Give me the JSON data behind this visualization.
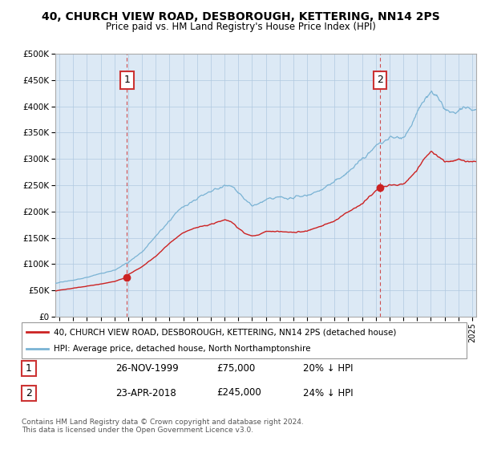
{
  "title": "40, CHURCH VIEW ROAD, DESBOROUGH, KETTERING, NN14 2PS",
  "subtitle": "Price paid vs. HM Land Registry's House Price Index (HPI)",
  "ylim": [
    0,
    500000
  ],
  "yticks": [
    0,
    50000,
    100000,
    150000,
    200000,
    250000,
    300000,
    350000,
    400000,
    450000,
    500000
  ],
  "ytick_labels": [
    "£0",
    "£50K",
    "£100K",
    "£150K",
    "£200K",
    "£250K",
    "£300K",
    "£350K",
    "£400K",
    "£450K",
    "£500K"
  ],
  "hpi_color": "#7ab3d4",
  "price_color": "#cc2222",
  "vline_color": "#cc3333",
  "sale1_x": 1999.9,
  "sale1_y": 75000,
  "sale2_x": 2018.3,
  "sale2_y": 245000,
  "legend_entries": [
    "40, CHURCH VIEW ROAD, DESBOROUGH, KETTERING, NN14 2PS (detached house)",
    "HPI: Average price, detached house, North Northamptonshire"
  ],
  "table_rows": [
    [
      "1",
      "26-NOV-1999",
      "£75,000",
      "20% ↓ HPI"
    ],
    [
      "2",
      "23-APR-2018",
      "£245,000",
      "24% ↓ HPI"
    ]
  ],
  "footnote": "Contains HM Land Registry data © Crown copyright and database right 2024.\nThis data is licensed under the Open Government Licence v3.0.",
  "plot_bg_color": "#dce9f5",
  "grid_color": "#b0c8e0",
  "xlim_start": 1994.7,
  "xlim_end": 2025.3,
  "hpi_breakpoints": [
    1994.5,
    1995,
    1996,
    1997,
    1998,
    1999,
    2000,
    2001,
    2002,
    2003,
    2004,
    2005,
    2006,
    2007,
    2007.5,
    2008,
    2008.5,
    2009,
    2009.5,
    2010,
    2011,
    2012,
    2013,
    2014,
    2015,
    2016,
    2017,
    2017.5,
    2018,
    2019,
    2020,
    2020.5,
    2021,
    2021.5,
    2022,
    2022.5,
    2023,
    2023.5,
    2024,
    2024.5,
    2025
  ],
  "hpi_vals": [
    62000,
    65000,
    70000,
    76000,
    83000,
    90000,
    105000,
    125000,
    155000,
    185000,
    210000,
    225000,
    240000,
    250000,
    248000,
    235000,
    220000,
    210000,
    215000,
    220000,
    225000,
    222000,
    228000,
    240000,
    255000,
    275000,
    305000,
    315000,
    330000,
    345000,
    345000,
    360000,
    390000,
    415000,
    430000,
    420000,
    400000,
    390000,
    395000,
    405000,
    400000
  ],
  "prop_breakpoints": [
    1994.5,
    1995,
    1996,
    1997,
    1998,
    1999,
    1999.9,
    2000,
    2001,
    2002,
    2003,
    2004,
    2005,
    2006,
    2007,
    2007.5,
    2008,
    2008.5,
    2009,
    2009.5,
    2010,
    2011,
    2012,
    2013,
    2014,
    2015,
    2016,
    2017,
    2018,
    2018.3,
    2019,
    2020,
    2020.5,
    2021,
    2021.5,
    2022,
    2022.5,
    2023,
    2023.5,
    2024,
    2024.5,
    2025
  ],
  "prop_vals": [
    48000,
    50000,
    54000,
    58000,
    62000,
    67000,
    75000,
    80000,
    95000,
    115000,
    140000,
    160000,
    170000,
    175000,
    185000,
    180000,
    168000,
    158000,
    153000,
    156000,
    162000,
    162000,
    160000,
    163000,
    172000,
    182000,
    200000,
    215000,
    240000,
    245000,
    250000,
    252000,
    265000,
    280000,
    300000,
    315000,
    305000,
    295000,
    295000,
    300000,
    295000,
    295000
  ]
}
